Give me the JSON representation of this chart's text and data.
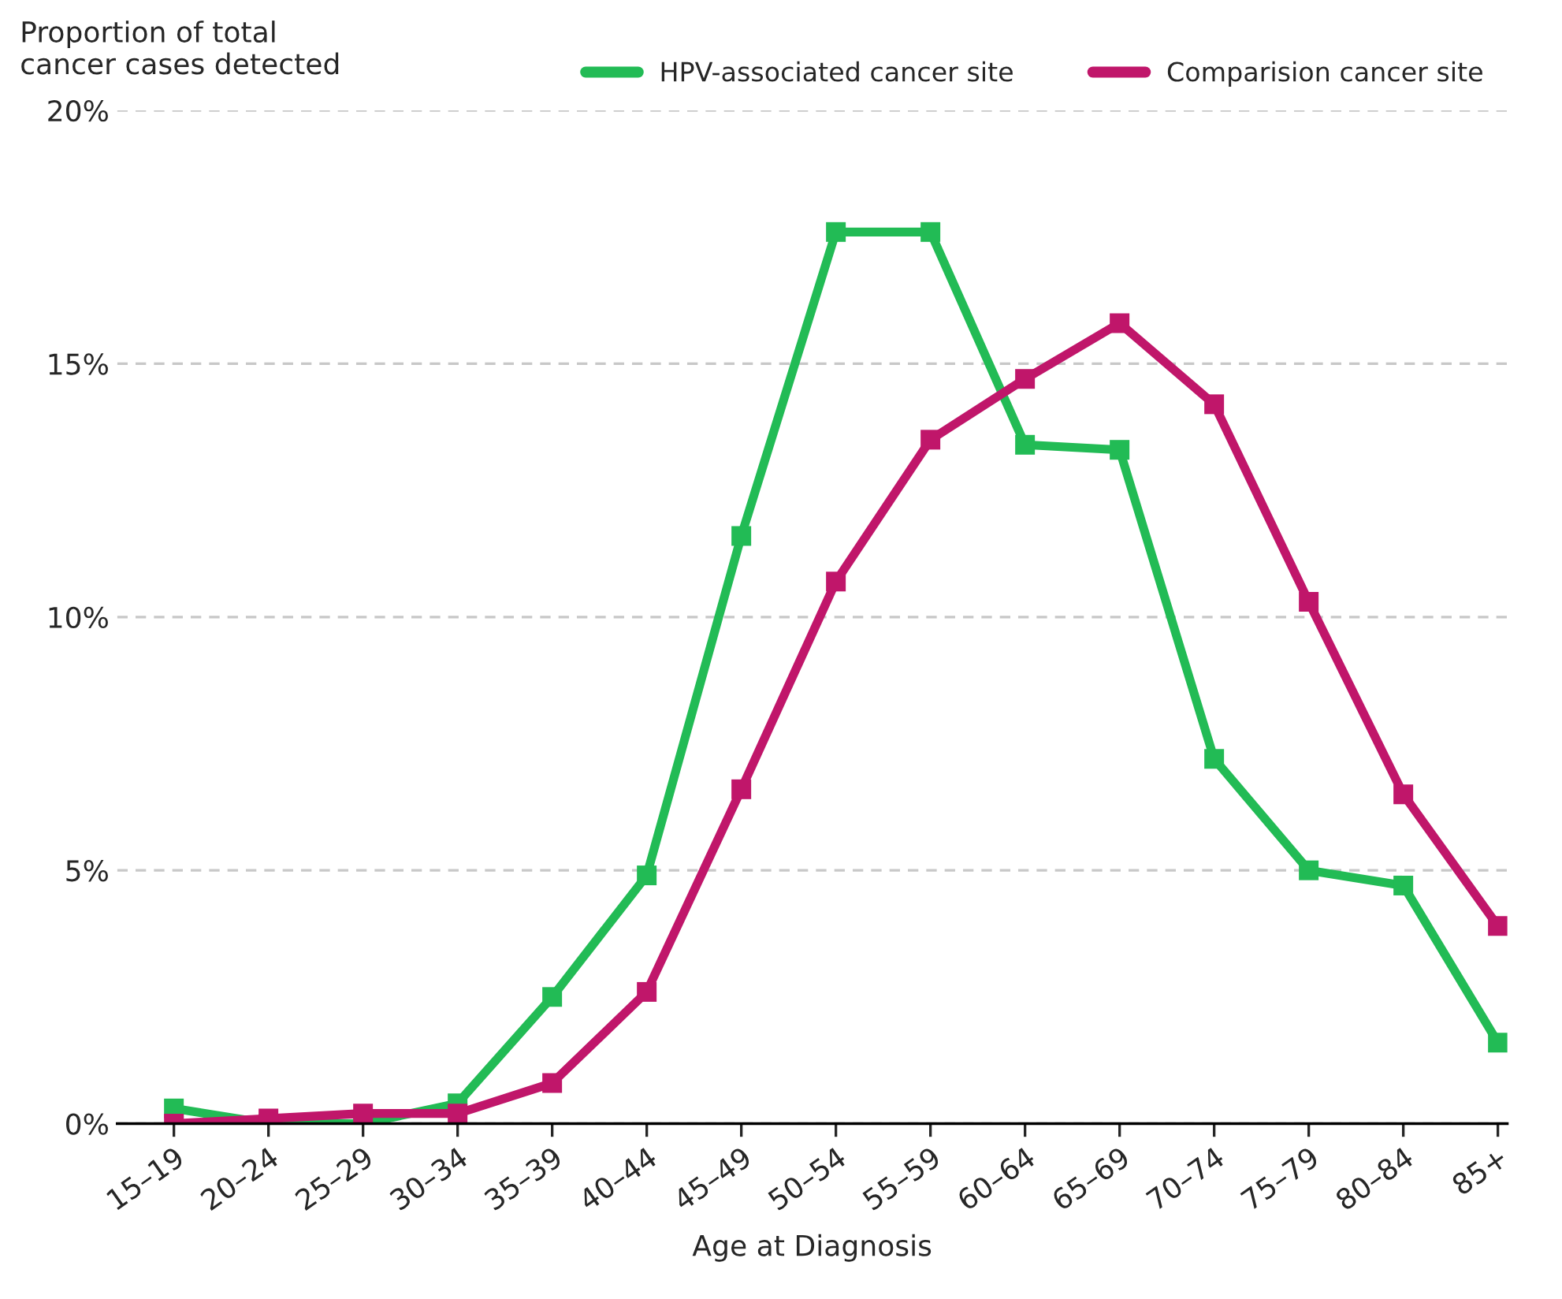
{
  "chart_data": {
    "type": "line",
    "ylabel": "Proportion of total\ncancer cases detected",
    "xlabel": "Age at Diagnosis",
    "categories": [
      "15–19",
      "20–24",
      "25–29",
      "30–34",
      "35–39",
      "40–44",
      "45–49",
      "50–54",
      "55–59",
      "60–64",
      "65–69",
      "70–74",
      "75–79",
      "80–84",
      "85+"
    ],
    "series": [
      {
        "name": "HPV-associated cancer site",
        "color": "#22bb55",
        "values": [
          0.3,
          0,
          0,
          0.4,
          2.5,
          4.9,
          11.6,
          17.6,
          17.6,
          13.4,
          13.3,
          7.2,
          5.0,
          4.7,
          1.6
        ]
      },
      {
        "name": "Comparision cancer site",
        "color": "#c0166a",
        "values": [
          0,
          0.1,
          0.2,
          0.2,
          0.8,
          2.6,
          6.6,
          10.7,
          13.5,
          14.7,
          15.8,
          14.2,
          10.3,
          6.5,
          3.9
        ]
      }
    ],
    "ylim": [
      0,
      20
    ],
    "yticks": [
      {
        "value": 0,
        "label": "0%"
      },
      {
        "value": 5,
        "label": "5%"
      },
      {
        "value": 10,
        "label": "10%"
      },
      {
        "value": 15,
        "label": "15%"
      },
      {
        "value": 20,
        "label": "20%"
      }
    ],
    "grid": "y",
    "legend": "top right",
    "marker": "square",
    "line_style": "solid"
  }
}
